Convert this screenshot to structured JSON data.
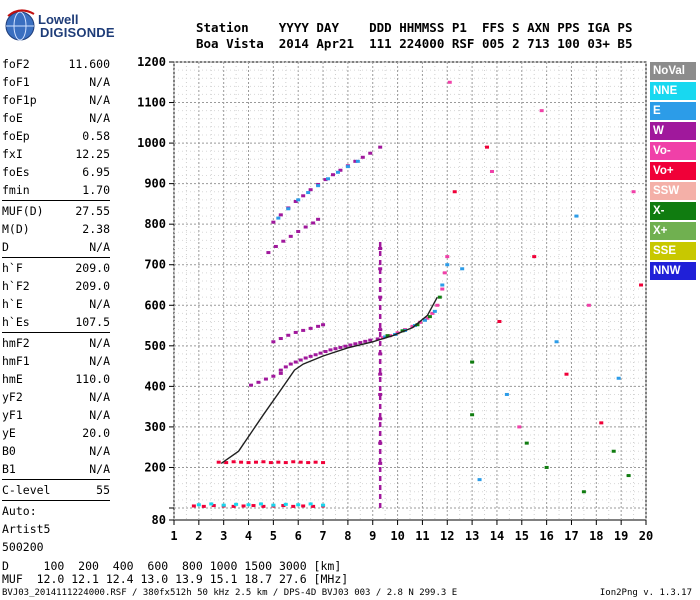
{
  "logo": {
    "line1": "Lowell",
    "line2": "DIGISONDE"
  },
  "header": {
    "row1": "Station    YYYY DAY    DDD HHMMSS P1  FFS S AXN PPS IGA PS",
    "row2": "Boa Vista  2014 Apr21  111 224000 RSF 005 2 713 100 03+ B5"
  },
  "params": {
    "group1": [
      {
        "k": "foF2",
        "v": "11.600"
      },
      {
        "k": "foF1",
        "v": "N/A"
      },
      {
        "k": "foF1p",
        "v": "N/A"
      },
      {
        "k": "foE",
        "v": "N/A"
      },
      {
        "k": "foEp",
        "v": "0.58"
      },
      {
        "k": "fxI",
        "v": "12.25"
      },
      {
        "k": "foEs",
        "v": "6.95"
      },
      {
        "k": "fmin",
        "v": "1.70"
      }
    ],
    "group2": [
      {
        "k": "MUF(D)",
        "v": "27.55"
      },
      {
        "k": "M(D)",
        "v": "2.38"
      },
      {
        "k": "D",
        "v": "N/A"
      }
    ],
    "group3": [
      {
        "k": "h`F",
        "v": "209.0"
      },
      {
        "k": "h`F2",
        "v": "209.0"
      },
      {
        "k": "h`E",
        "v": "N/A"
      },
      {
        "k": "h`Es",
        "v": "107.5"
      }
    ],
    "group4": [
      {
        "k": "hmF2",
        "v": "N/A"
      },
      {
        "k": "hmF1",
        "v": "N/A"
      },
      {
        "k": "hmE",
        "v": "110.0"
      },
      {
        "k": "yF2",
        "v": "N/A"
      },
      {
        "k": "yF1",
        "v": "N/A"
      },
      {
        "k": "yE",
        "v": "20.0"
      },
      {
        "k": "B0",
        "v": "N/A"
      },
      {
        "k": "B1",
        "v": "N/A"
      }
    ],
    "group5": [
      {
        "k": "C-level",
        "v": "55"
      }
    ],
    "auto": [
      "Auto:",
      "Artist5",
      "500200"
    ]
  },
  "legend": [
    {
      "label": "NoVal",
      "color": "#8c8c8c"
    },
    {
      "label": "NNE",
      "color": "#18d8f0"
    },
    {
      "label": "E",
      "color": "#2c9ce8"
    },
    {
      "label": "W",
      "color": "#a0189c"
    },
    {
      "label": "Vo-",
      "color": "#f040a8"
    },
    {
      "label": "Vo+",
      "color": "#f00038"
    },
    {
      "label": "SSW",
      "color": "#f4b0a8"
    },
    {
      "label": "X-",
      "color": "#107c10"
    },
    {
      "label": "X+",
      "color": "#70b050"
    },
    {
      "label": "SSE",
      "color": "#c8c800"
    },
    {
      "label": "NNW",
      "color": "#2020d8"
    }
  ],
  "bottom": {
    "line1": "D     100  200  400  600  800 1000 1500 3000 [km]",
    "line2": "MUF  12.0 12.1 12.4 13.0 13.9 15.1 18.7 27.6 [MHz]"
  },
  "footer": "BVJ03_2014111224000.RSF / 380fx512h 50 kHz 2.5 km / DPS-4D BVJ03 003 / 2.8 N 299.3 E",
  "version": "Ion2Png v. 1.3.17",
  "chart_data": {
    "type": "scatter",
    "xlim": [
      1,
      20
    ],
    "ylim": [
      80,
      1200
    ],
    "x_ticks": [
      "1",
      "2",
      "3",
      "4",
      "5",
      "6",
      "7",
      "8",
      "9",
      "10",
      "11",
      "12",
      "13",
      "14",
      "15",
      "16",
      "17",
      "18",
      "19",
      "20"
    ],
    "y_ticks": [
      "80",
      "100",
      "200",
      "300",
      "400",
      "500",
      "600",
      "700",
      "800",
      "900",
      "1000",
      "1100",
      "1200"
    ],
    "y_tick_values": [
      80,
      100,
      200,
      300,
      400,
      500,
      600,
      700,
      800,
      900,
      1000,
      1100,
      1200
    ],
    "grid": true,
    "foF2_marker_x": 9.3,
    "trace_x": [
      2.9,
      3.6,
      4.6,
      5.4,
      5.85,
      6.2,
      7.0,
      8.0,
      9.0,
      9.8,
      10.6,
      11.2,
      11.6
    ],
    "trace_y": [
      210,
      240,
      330,
      400,
      440,
      455,
      475,
      495,
      510,
      525,
      545,
      575,
      620
    ],
    "series": [
      {
        "color": "#a0189c",
        "x": [
          5.3,
          5.5,
          5.7,
          5.9,
          6.1,
          6.3,
          6.5,
          6.7,
          6.9,
          7.1,
          7.3,
          7.5,
          7.7,
          7.9,
          8.1,
          8.3,
          8.5,
          8.7,
          8.9,
          9.2
        ],
        "y": [
          440,
          448,
          455,
          460,
          465,
          470,
          474,
          478,
          482,
          486,
          490,
          493,
          496,
          499,
          502,
          505,
          508,
          511,
          514,
          517
        ]
      },
      {
        "color": "#f040a8",
        "x": [
          9.4,
          9.7,
          10.0,
          10.3,
          10.6,
          10.9,
          11.2,
          11.4,
          11.6,
          11.8,
          11.9,
          12.0
        ],
        "y": [
          520,
          525,
          532,
          540,
          548,
          558,
          568,
          580,
          600,
          640,
          680,
          720
        ]
      },
      {
        "color": "#2c9ce8",
        "x": [
          9.5,
          9.9,
          10.3,
          10.7,
          11.1,
          11.5,
          11.8,
          12.0
        ],
        "y": [
          522,
          528,
          538,
          550,
          563,
          585,
          650,
          700
        ]
      },
      {
        "color": "#107c10",
        "x": [
          9.6,
          10.2,
          10.8,
          11.3,
          11.7
        ],
        "y": [
          525,
          537,
          552,
          572,
          620
        ]
      },
      {
        "color": "#a0189c",
        "x": [
          5.0,
          5.3,
          5.6,
          5.9,
          6.2,
          6.5,
          6.8,
          7.0
        ],
        "y": [
          510,
          518,
          526,
          533,
          538,
          543,
          548,
          552
        ]
      },
      {
        "color": "#a0189c",
        "x": [
          4.1,
          4.4,
          4.7,
          5.0,
          5.3
        ],
        "y": [
          403,
          410,
          418,
          425,
          432
        ]
      },
      {
        "color": "#a0189c",
        "x": [
          5.0,
          5.3,
          5.6,
          5.9,
          6.2,
          6.5,
          6.8,
          7.1,
          7.4,
          7.7,
          8.0,
          8.3,
          8.6,
          8.9,
          9.3
        ],
        "y": [
          805,
          823,
          840,
          856,
          870,
          885,
          898,
          910,
          922,
          933,
          944,
          955,
          965,
          975,
          990
        ]
      },
      {
        "color": "#2c9ce8",
        "x": [
          5.2,
          5.6,
          6.0,
          6.4,
          6.8,
          7.2,
          7.6,
          8.0,
          8.4
        ],
        "y": [
          815,
          838,
          860,
          878,
          895,
          912,
          928,
          942,
          955
        ]
      },
      {
        "color": "#a0189c",
        "x": [
          4.8,
          5.1,
          5.4,
          5.7,
          6.0,
          6.3,
          6.6,
          6.8
        ],
        "y": [
          730,
          745,
          758,
          770,
          782,
          793,
          803,
          812
        ]
      },
      {
        "color": "#f00038",
        "x": [
          2.8,
          3.1,
          3.4,
          3.7,
          4.0,
          4.3,
          4.6,
          4.9,
          5.2,
          5.5,
          5.8,
          6.1,
          6.4,
          6.7,
          7.0
        ],
        "y": [
          213,
          212,
          214,
          213,
          212,
          213,
          214,
          212,
          213,
          212,
          214,
          213,
          212,
          213,
          212
        ]
      },
      {
        "color": "#f00038",
        "x": [
          1.8,
          2.2,
          2.6,
          3.0,
          3.4,
          3.8,
          4.2,
          4.6,
          5.0,
          5.4,
          5.8,
          6.2,
          6.6,
          7.0
        ],
        "y": [
          105,
          104,
          106,
          105,
          104,
          105,
          106,
          104,
          105,
          106,
          104,
          105,
          104,
          105
        ]
      },
      {
        "color": "#18d8f0",
        "x": [
          2.0,
          2.5,
          3.0,
          3.5,
          4.0,
          4.5,
          5.0,
          5.5,
          6.0,
          6.5,
          7.0
        ],
        "y": [
          108,
          110,
          107,
          109,
          108,
          110,
          107,
          109,
          108,
          110,
          107
        ]
      },
      {
        "color": "#a0189c",
        "x": [
          9.3,
          9.3,
          9.3,
          9.3,
          9.3,
          9.3,
          9.3,
          9.3,
          9.3,
          9.3
        ],
        "y": [
          210,
          260,
          320,
          380,
          430,
          480,
          540,
          620,
          690,
          740
        ]
      },
      {
        "color": "#107c10",
        "x": [
          13.0,
          13.0,
          15.2,
          16.0,
          17.5,
          18.7,
          19.3
        ],
        "y": [
          460,
          330,
          260,
          200,
          140,
          240,
          180
        ]
      },
      {
        "color": "#f00038",
        "x": [
          12.3,
          14.1,
          15.5,
          16.8,
          18.2,
          19.8,
          13.6
        ],
        "y": [
          880,
          560,
          720,
          430,
          310,
          650,
          990
        ]
      },
      {
        "color": "#2c9ce8",
        "x": [
          12.6,
          14.4,
          16.4,
          17.2,
          18.9,
          13.3
        ],
        "y": [
          690,
          380,
          510,
          820,
          420,
          170
        ]
      },
      {
        "color": "#f040a8",
        "x": [
          12.1,
          13.8,
          15.8,
          17.7,
          19.5,
          14.9
        ],
        "y": [
          1150,
          930,
          1080,
          600,
          880,
          300
        ]
      }
    ]
  }
}
